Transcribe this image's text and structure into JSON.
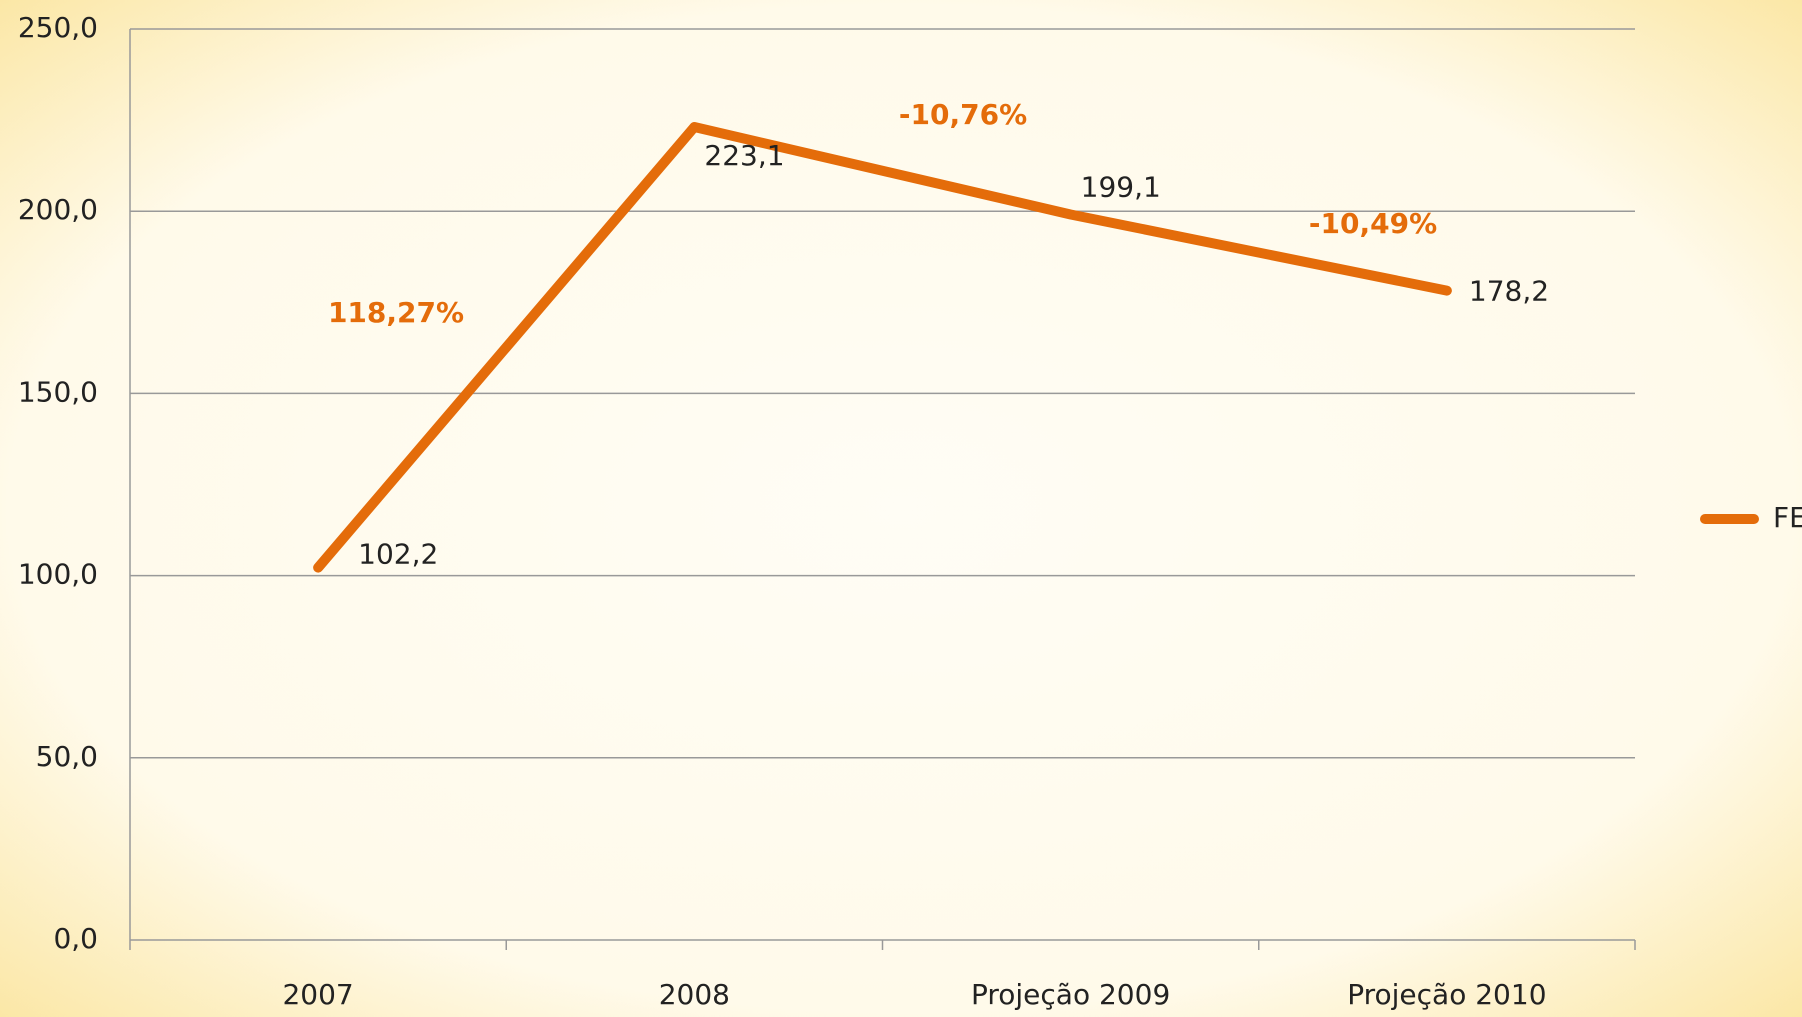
{
  "chart_data": {
    "type": "line",
    "categories": [
      "2007",
      "2008",
      "Projeção 2009",
      "Projeção 2010"
    ],
    "series": [
      {
        "name": "FEX",
        "color": "#E46C0A",
        "values": [
          102.2,
          223.1,
          199.1,
          178.2
        ],
        "value_labels": [
          "102,2",
          "223,1",
          "199,1",
          "178,2"
        ]
      }
    ],
    "annotations": [
      "118,27%",
      "-10,76%",
      "-10,49%"
    ],
    "ylim": [
      0,
      250
    ],
    "yticks": [
      {
        "value": 0,
        "label": "0,0"
      },
      {
        "value": 50,
        "label": "50,0"
      },
      {
        "value": 100,
        "label": "100,0"
      },
      {
        "value": 150,
        "label": "150,0"
      },
      {
        "value": 200,
        "label": "200,0"
      },
      {
        "value": 250,
        "label": "250,0"
      }
    ],
    "grid": true,
    "legend": "right"
  }
}
